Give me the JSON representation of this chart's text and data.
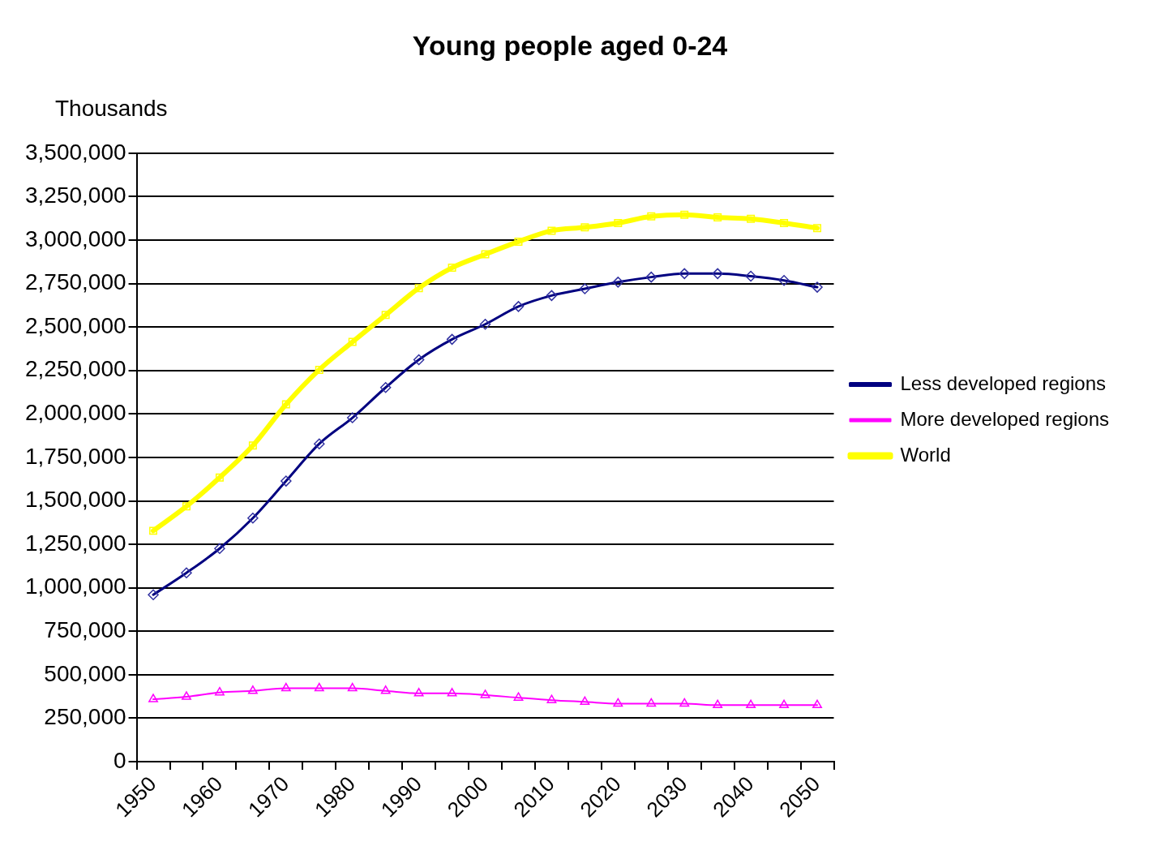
{
  "chart_data": {
    "type": "line",
    "title": "Young people aged 0-24",
    "ylabel": "Thousands",
    "categories": [
      "1950",
      null,
      "1960",
      null,
      "1970",
      null,
      "1980",
      null,
      "1990",
      null,
      "2000",
      null,
      "2010",
      null,
      "2020",
      null,
      "2030",
      null,
      "2040",
      null,
      "2050"
    ],
    "series": [
      {
        "name": "Less developed regions",
        "color": "#000080",
        "marker": "diamond",
        "values": [
          960000,
          1086000,
          1226000,
          1401000,
          1614000,
          1828000,
          1978000,
          2152000,
          2312000,
          2429000,
          2516000,
          2618000,
          2681000,
          2720000,
          2758000,
          2787000,
          2807000,
          2807000,
          2792000,
          2768000,
          2729000
        ]
      },
      {
        "name": "More developed regions",
        "color": "#ff00ff",
        "marker": "triangle",
        "values": [
          359000,
          373000,
          398000,
          407000,
          422000,
          422000,
          422000,
          407000,
          393000,
          393000,
          383000,
          368000,
          354000,
          344000,
          334000,
          334000,
          334000,
          325000,
          325000,
          325000,
          325000
        ]
      },
      {
        "name": "World",
        "color": "#ffff00",
        "marker": "square",
        "values": [
          1328000,
          1469000,
          1634000,
          1818000,
          2055000,
          2254000,
          2414000,
          2569000,
          2724000,
          2841000,
          2918000,
          2991000,
          3054000,
          3073000,
          3098000,
          3136000,
          3146000,
          3131000,
          3122000,
          3098000,
          3069000
        ]
      }
    ],
    "ylim": [
      0,
      3500000
    ],
    "yticks": [
      {
        "value": 0,
        "label": "0"
      },
      {
        "value": 250000,
        "label": "250,000"
      },
      {
        "value": 500000,
        "label": "500,000"
      },
      {
        "value": 750000,
        "label": "750,000"
      },
      {
        "value": 1000000,
        "label": "1,000,000"
      },
      {
        "value": 1250000,
        "label": "1,250,000"
      },
      {
        "value": 1500000,
        "label": "1,500,000"
      },
      {
        "value": 1750000,
        "label": "1,750,000"
      },
      {
        "value": 2000000,
        "label": "2,000,000"
      },
      {
        "value": 2250000,
        "label": "2,250,000"
      },
      {
        "value": 2500000,
        "label": "2,500,000"
      },
      {
        "value": 2750000,
        "label": "2,750,000"
      },
      {
        "value": 3000000,
        "label": "3,000,000"
      },
      {
        "value": 3250000,
        "label": "3,250,000"
      },
      {
        "value": 3500000,
        "label": "3,500,000"
      }
    ],
    "grid": "y",
    "legend": "right",
    "line_style": "solid"
  }
}
